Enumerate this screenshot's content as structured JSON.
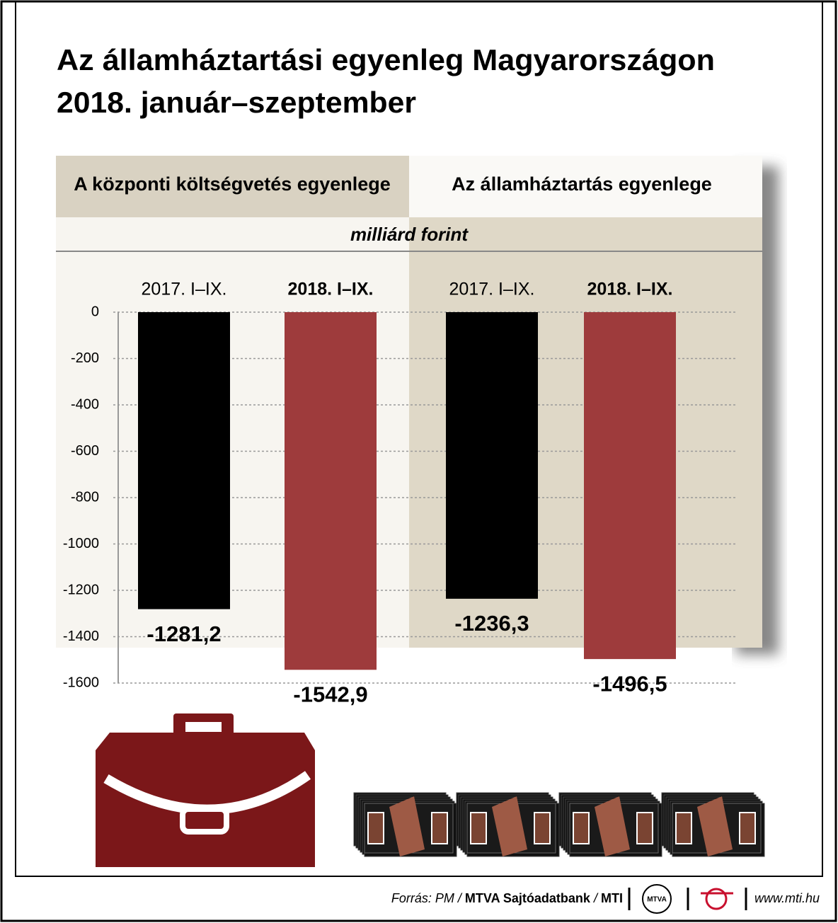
{
  "chart_data": {
    "type": "bar",
    "title": [
      "Az államháztartási egyenleg Magyarországon",
      "2018. január–szeptember"
    ],
    "panels": [
      "A központi költségvetés egyenlege",
      "Az államháztartás egyenlege"
    ],
    "unit": "milliárd forint",
    "categories": [
      "2017. I–IX.",
      "2018. I–IX.",
      "2017. I–IX.",
      "2018. I–IX."
    ],
    "values": [
      -1281.2,
      -1542.9,
      -1236.3,
      -1496.5
    ],
    "value_labels": [
      "-1281,2",
      "-1542,9",
      "-1236,3",
      "-1496,5"
    ],
    "colors": [
      "#000000",
      "#9e3b3c",
      "#000000",
      "#9e3b3c"
    ],
    "ylim": [
      -1600,
      0
    ],
    "yticks": [
      0,
      -200,
      -400,
      -600,
      -800,
      -1000,
      -1200,
      -1400,
      -1600
    ],
    "grid": true
  },
  "footer": {
    "source_parts": [
      "Forrás: PM /",
      "MTVA Sajtóadatbank",
      "/",
      "MTI"
    ],
    "logo": "MTVA",
    "website": "www.mti.hu"
  }
}
